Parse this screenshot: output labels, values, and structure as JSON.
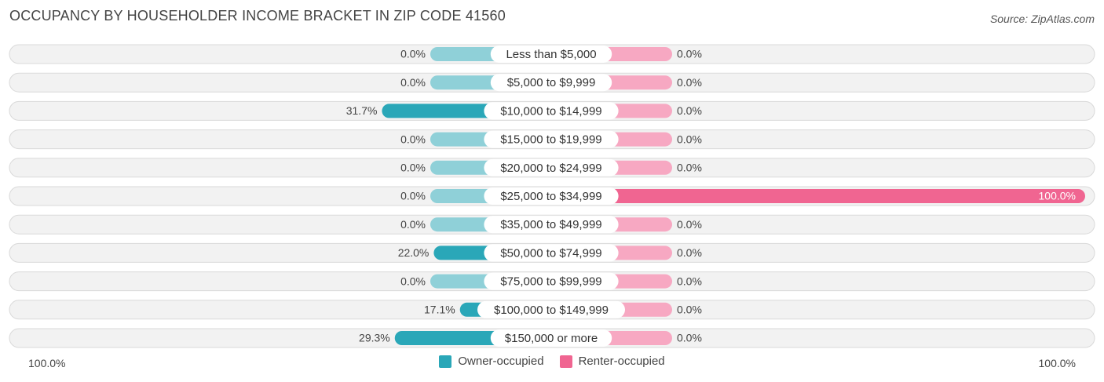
{
  "header": {
    "title": "OCCUPANCY BY HOUSEHOLDER INCOME BRACKET IN ZIP CODE 41560",
    "source": "Source: ZipAtlas.com"
  },
  "colors": {
    "owner": "#2aa7b8",
    "owner_light": "#8fd0d8",
    "renter": "#f06591",
    "renter_light": "#f7a8c2",
    "row_bg": "#f2f2f2",
    "row_border": "#d9d9d9"
  },
  "chart_data": {
    "type": "bar",
    "orientation": "horizontal-diverging",
    "categories": [
      "Less than $5,000",
      "$5,000 to $9,999",
      "$10,000 to $14,999",
      "$15,000 to $19,999",
      "$20,000 to $24,999",
      "$25,000 to $34,999",
      "$35,000 to $49,999",
      "$50,000 to $74,999",
      "$75,000 to $99,999",
      "$100,000 to $149,999",
      "$150,000 or more"
    ],
    "series": [
      {
        "name": "Owner-occupied",
        "values": [
          0.0,
          0.0,
          31.7,
          0.0,
          0.0,
          0.0,
          0.0,
          22.0,
          0.0,
          17.1,
          29.3
        ],
        "labels": [
          "0.0%",
          "0.0%",
          "31.7%",
          "0.0%",
          "0.0%",
          "0.0%",
          "0.0%",
          "22.0%",
          "0.0%",
          "17.1%",
          "29.3%"
        ]
      },
      {
        "name": "Renter-occupied",
        "values": [
          0.0,
          0.0,
          0.0,
          0.0,
          0.0,
          100.0,
          0.0,
          0.0,
          0.0,
          0.0,
          0.0
        ],
        "labels": [
          "0.0%",
          "0.0%",
          "0.0%",
          "0.0%",
          "0.0%",
          "100.0%",
          "0.0%",
          "0.0%",
          "0.0%",
          "0.0%",
          "0.0%"
        ]
      }
    ],
    "xlim": [
      0,
      100
    ],
    "axis_left_label": "100.0%",
    "axis_right_label": "100.0%",
    "legend_position": "bottom-center"
  }
}
